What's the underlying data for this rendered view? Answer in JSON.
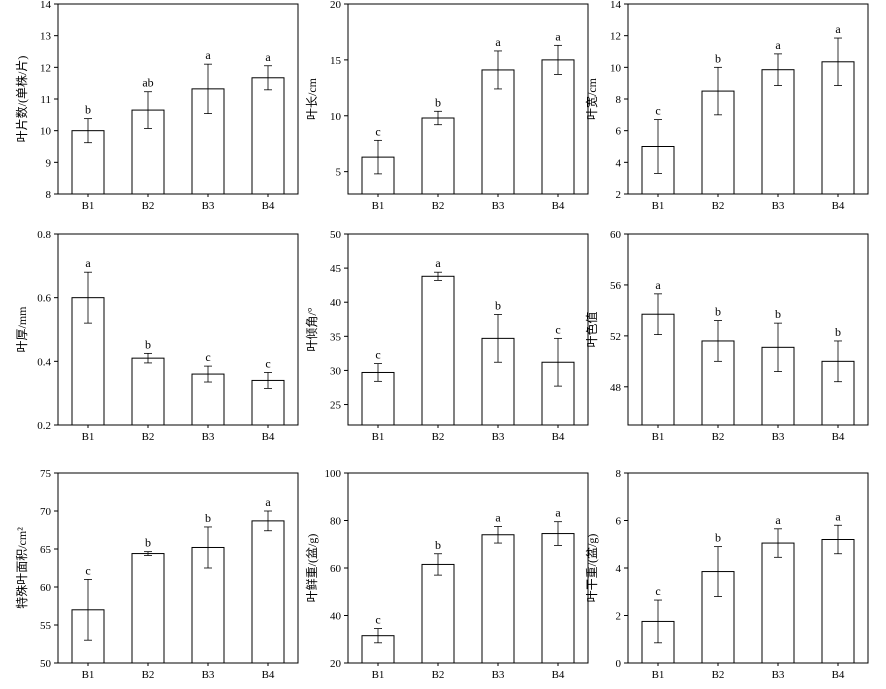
{
  "chart_data": [
    {
      "type": "bar",
      "ylabel": "叶片数/(单株/片)",
      "ylim": [
        8,
        14
      ],
      "yticks": [
        8,
        9,
        10,
        11,
        12,
        13,
        14
      ],
      "categories": [
        "B1",
        "B2",
        "B3",
        "B4"
      ],
      "values": [
        10.0,
        10.65,
        11.32,
        11.67
      ],
      "errors": [
        0.38,
        0.58,
        0.78,
        0.38
      ],
      "letters": [
        "b",
        "ab",
        "a",
        "a"
      ]
    },
    {
      "type": "bar",
      "ylabel": "叶长/cm",
      "ylim": [
        3,
        20
      ],
      "yticks": [
        5,
        10,
        15,
        20
      ],
      "categories": [
        "B1",
        "B2",
        "B3",
        "B4"
      ],
      "values": [
        6.3,
        9.8,
        14.1,
        15.0
      ],
      "errors": [
        1.5,
        0.6,
        1.7,
        1.3
      ],
      "letters": [
        "c",
        "b",
        "a",
        "a"
      ]
    },
    {
      "type": "bar",
      "ylabel": "叶宽/cm",
      "ylim": [
        2,
        14
      ],
      "yticks": [
        2,
        4,
        6,
        8,
        10,
        12,
        14
      ],
      "categories": [
        "B1",
        "B2",
        "B3",
        "B4"
      ],
      "values": [
        5.0,
        8.5,
        9.85,
        10.35
      ],
      "errors": [
        1.7,
        1.5,
        1.0,
        1.5
      ],
      "letters": [
        "c",
        "b",
        "a",
        "a"
      ]
    },
    {
      "type": "bar",
      "ylabel": "叶厚/mm",
      "ylim": [
        0.2,
        0.8
      ],
      "yticks": [
        0.2,
        0.4,
        0.6,
        0.8
      ],
      "categories": [
        "B1",
        "B2",
        "B3",
        "B4"
      ],
      "values": [
        0.6,
        0.41,
        0.36,
        0.34
      ],
      "errors": [
        0.08,
        0.015,
        0.025,
        0.025
      ],
      "letters": [
        "a",
        "b",
        "c",
        "c"
      ]
    },
    {
      "type": "bar",
      "ylabel": "叶倾角/°",
      "ylim": [
        22,
        50
      ],
      "yticks": [
        25,
        30,
        35,
        40,
        45,
        50
      ],
      "categories": [
        "B1",
        "B2",
        "B3",
        "B4"
      ],
      "values": [
        29.7,
        43.8,
        34.7,
        31.2
      ],
      "errors": [
        1.3,
        0.6,
        3.5,
        3.5
      ],
      "letters": [
        "c",
        "a",
        "b",
        "c"
      ]
    },
    {
      "type": "bar",
      "ylabel": "叶色值",
      "ylim": [
        45,
        60
      ],
      "yticks": [
        48,
        52,
        56,
        60
      ],
      "categories": [
        "B1",
        "B2",
        "B3",
        "B4"
      ],
      "values": [
        53.7,
        51.6,
        51.1,
        50.0
      ],
      "errors": [
        1.6,
        1.6,
        1.9,
        1.6
      ],
      "letters": [
        "a",
        "b",
        "b",
        "b"
      ]
    },
    {
      "type": "bar",
      "ylabel": "特殊叶面积/cm²",
      "ylim": [
        50,
        75
      ],
      "yticks": [
        50,
        55,
        60,
        65,
        70,
        75
      ],
      "categories": [
        "B1",
        "B2",
        "B3",
        "B4"
      ],
      "values": [
        57.0,
        64.4,
        65.2,
        68.7
      ],
      "errors": [
        4.0,
        0.25,
        2.7,
        1.3
      ],
      "letters": [
        "c",
        "b",
        "b",
        "a"
      ]
    },
    {
      "type": "bar",
      "ylabel": "叶鲜重/(盆/g)",
      "ylim": [
        20,
        100
      ],
      "yticks": [
        20,
        40,
        60,
        80,
        100
      ],
      "categories": [
        "B1",
        "B2",
        "B3",
        "B4"
      ],
      "values": [
        31.5,
        61.5,
        74.0,
        74.5
      ],
      "errors": [
        3.0,
        4.5,
        3.5,
        5.0
      ],
      "letters": [
        "c",
        "b",
        "a",
        "a"
      ]
    },
    {
      "type": "bar",
      "ylabel": "叶干重/(盆/g)",
      "ylim": [
        0,
        8
      ],
      "yticks": [
        0,
        2,
        4,
        6,
        8
      ],
      "categories": [
        "B1",
        "B2",
        "B3",
        "B4"
      ],
      "values": [
        1.75,
        3.85,
        5.05,
        5.2
      ],
      "errors": [
        0.9,
        1.05,
        0.6,
        0.6
      ],
      "letters": [
        "c",
        "b",
        "a",
        "a"
      ]
    }
  ]
}
